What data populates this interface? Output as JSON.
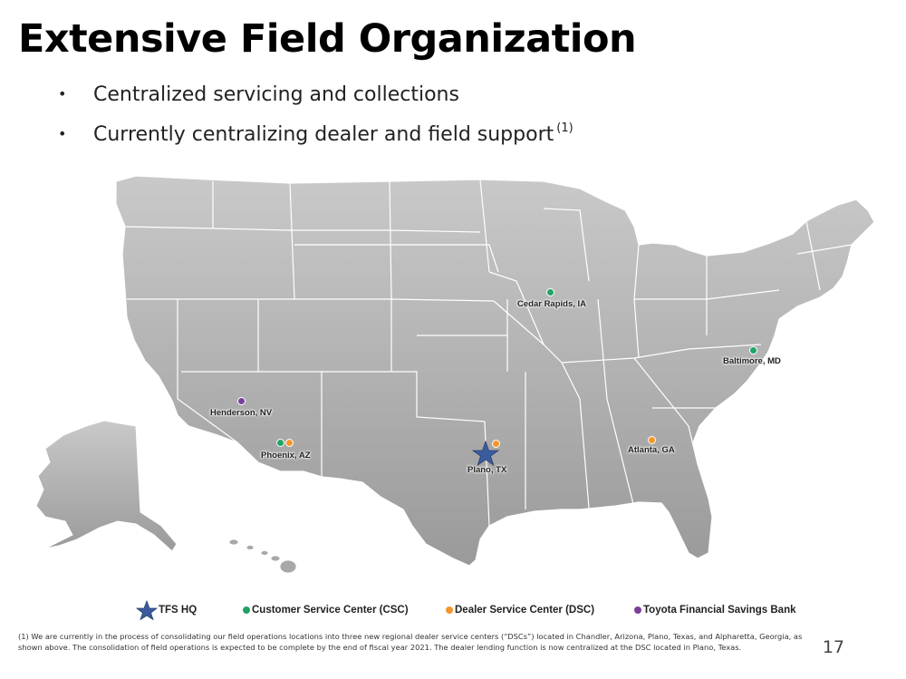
{
  "slide": {
    "title": "Extensive Field Organization",
    "bullets": [
      {
        "text": "Centralized servicing and collections",
        "sup": ""
      },
      {
        "text": "Currently centralizing dealer and field support",
        "sup": "(1)"
      }
    ],
    "bullet_glyph": "•",
    "page_number": "17"
  },
  "colors": {
    "csc": "#21a366",
    "dsc": "#f5962a",
    "savings": "#7a3f99",
    "hq": "#3a5c9e",
    "map_fill": "#b4b4b4",
    "map_border": "#ffffff"
  },
  "locations": [
    {
      "name": "Cedar Rapids, IA",
      "types": [
        "csc"
      ]
    },
    {
      "name": "Baltimore, MD",
      "types": [
        "csc"
      ]
    },
    {
      "name": "Henderson, NV",
      "types": [
        "savings"
      ]
    },
    {
      "name": "Phoenix, AZ",
      "types": [
        "csc",
        "dsc"
      ]
    },
    {
      "name": "Plano, TX",
      "types": [
        "hq",
        "dsc"
      ]
    },
    {
      "name": "Atlanta, GA",
      "types": [
        "dsc"
      ]
    }
  ],
  "legend": {
    "hq": "TFS HQ",
    "csc": "Customer Service Center (CSC)",
    "dsc": "Dealer Service Center (DSC)",
    "savings": "Toyota Financial Savings Bank"
  },
  "footnote": "(1) We are currently in the process of consolidating our field operations locations into three new regional dealer service centers (“DSCs”) located in Chandler, Arizona, Plano, Texas, and Alpharetta, Georgia, as shown above.  The consolidation of field operations is expected to be complete by the end of fiscal year 2021. The dealer lending function is now centralized at the DSC located in Plano, Texas."
}
